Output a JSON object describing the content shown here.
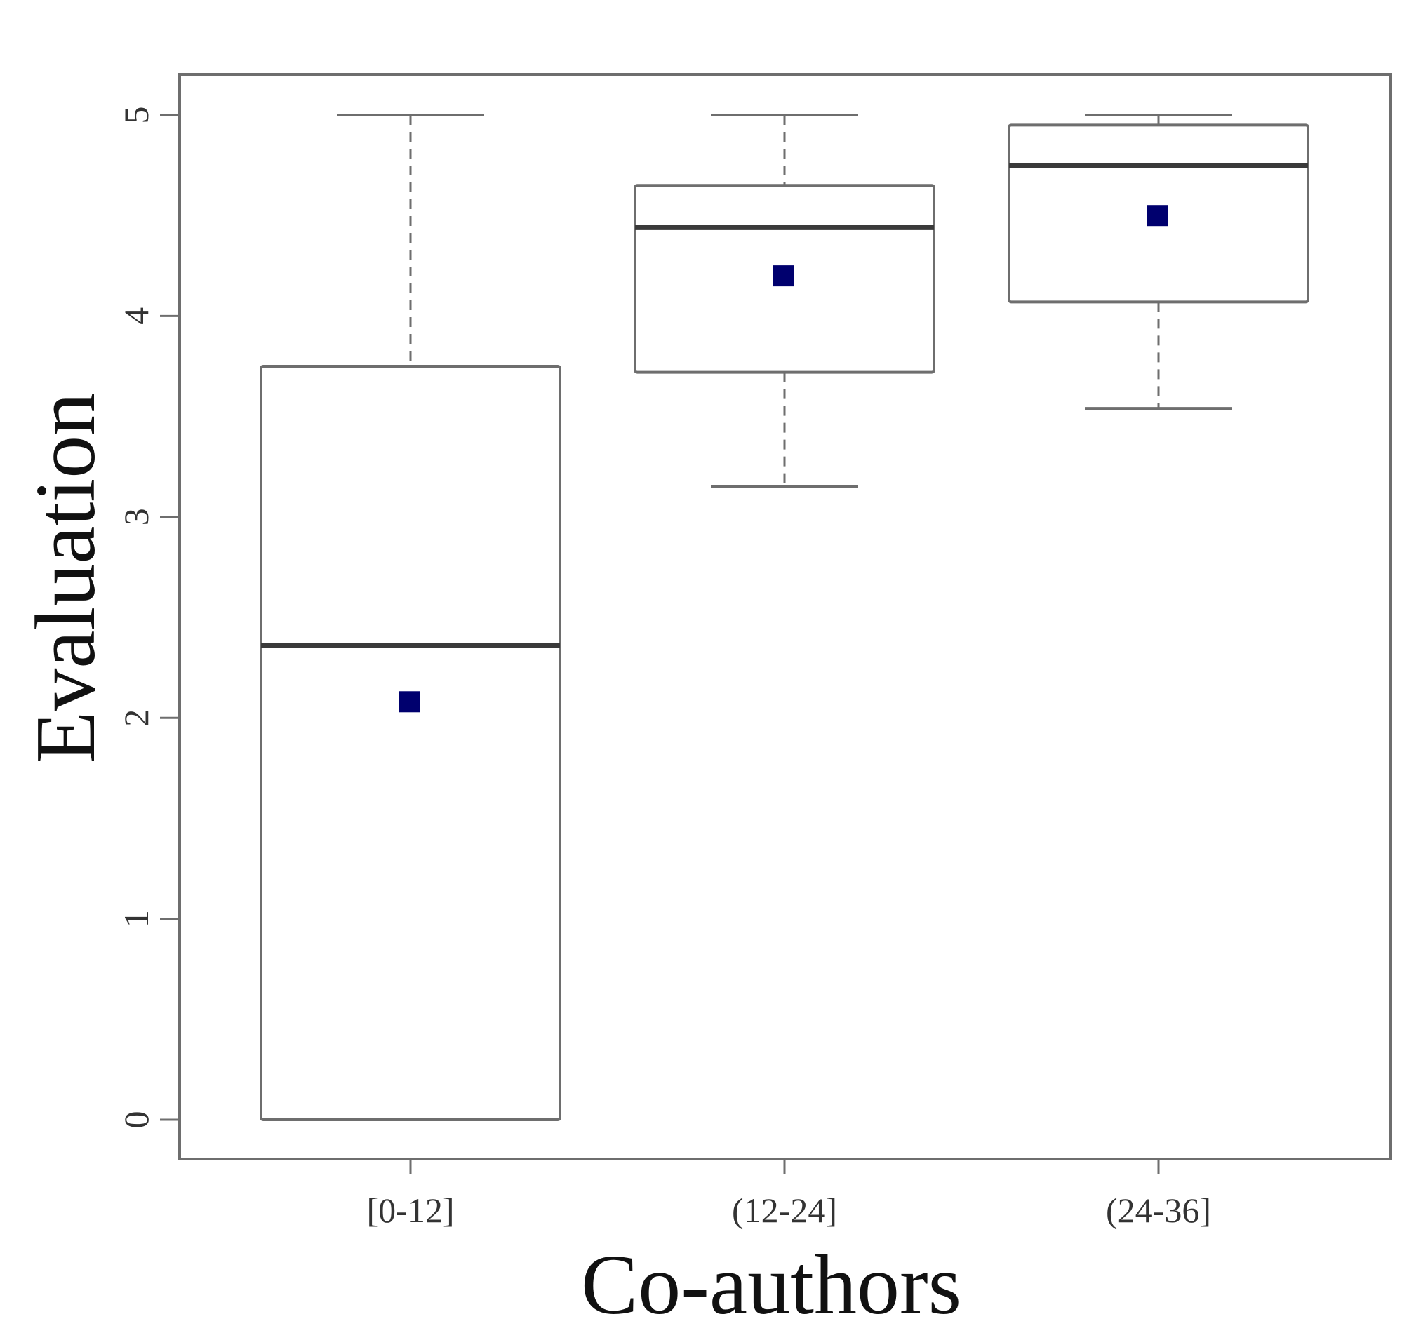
{
  "chart_data": {
    "type": "box",
    "title": "",
    "xlabel": "Co-authors",
    "ylabel": "Evaluation",
    "ylim": [
      -0.2,
      5.2
    ],
    "yticks": [
      0,
      1,
      2,
      3,
      4,
      5
    ],
    "grid": false,
    "legend": "none",
    "categories": [
      "[0-12]",
      "(12-24]",
      "(24-36]"
    ],
    "boxes": [
      {
        "category": "[0-12]",
        "whisker_low": 0.0,
        "q1": 0.0,
        "median": 2.36,
        "q3": 3.75,
        "whisker_high": 5.0,
        "mean": 2.08
      },
      {
        "category": "(12-24]",
        "whisker_low": 3.15,
        "q1": 3.72,
        "median": 4.44,
        "q3": 4.65,
        "whisker_high": 5.0,
        "mean": 4.2
      },
      {
        "category": "(24-36]",
        "whisker_low": 3.54,
        "q1": 4.07,
        "median": 4.75,
        "q3": 4.95,
        "whisker_high": 5.0,
        "mean": 4.5
      }
    ],
    "colors": {
      "box_stroke": "#6e6e6e",
      "median": "#3a3a3a",
      "mean_marker": "#00006e",
      "frame": "#6e6e6e"
    }
  }
}
